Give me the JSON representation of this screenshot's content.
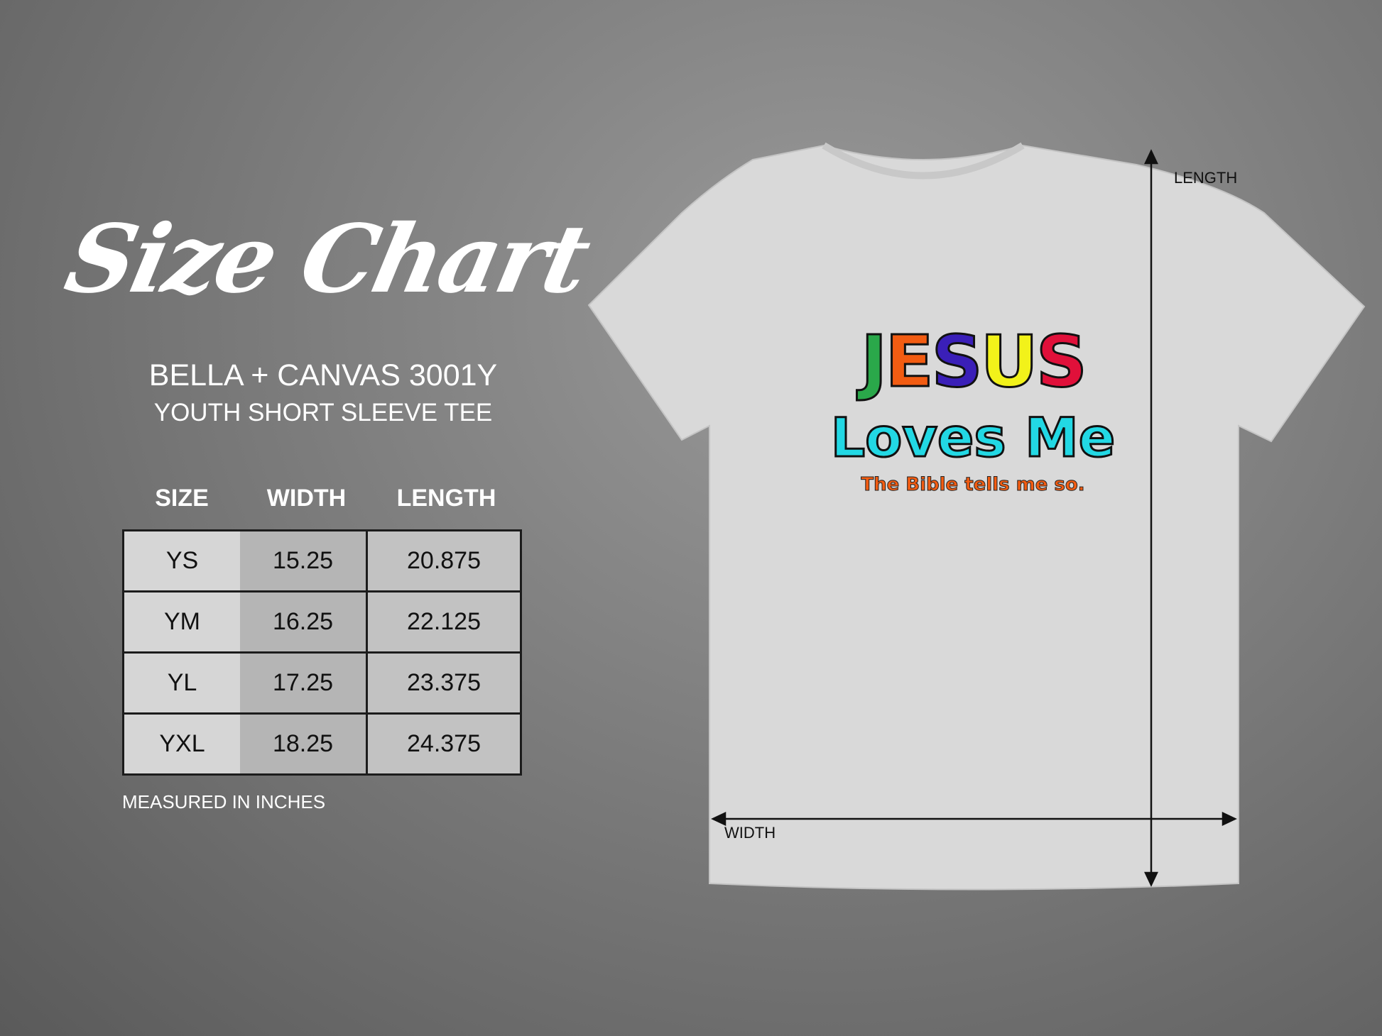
{
  "title": "Size Chart",
  "brand": "BELLA + CANVAS 3001Y",
  "subtitle": "YOUTH SHORT SLEEVE TEE",
  "table": {
    "headers": [
      "SIZE",
      "WIDTH",
      "LENGTH"
    ],
    "rows": [
      [
        "YS",
        "15.25",
        "20.875"
      ],
      [
        "YM",
        "16.25",
        "22.125"
      ],
      [
        "YL",
        "17.25",
        "23.375"
      ],
      [
        "YXL",
        "18.25",
        "24.375"
      ]
    ]
  },
  "note": "MEASURED IN INCHES",
  "diagram": {
    "length_label": "LENGTH",
    "width_label": "WIDTH"
  },
  "shirt_print": {
    "line1": [
      "J",
      "E",
      "S",
      "U",
      "S"
    ],
    "line1_colors": [
      "#2aa84a",
      "#f25c12",
      "#3a1fb8",
      "#f2f21a",
      "#e0103a"
    ],
    "line2": "Loves Me",
    "line3": "The Bible tells me so."
  }
}
